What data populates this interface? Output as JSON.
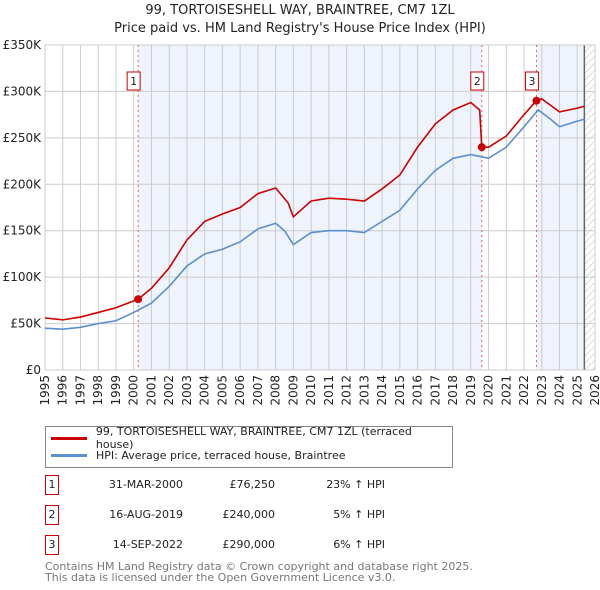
{
  "chart_data": {
    "type": "line",
    "title": "99, TORTOISESHELL WAY, BRAINTREE, CM7 1ZL",
    "subtitle": "Price paid vs. HM Land Registry's House Price Index (HPI)",
    "xlim": [
      1995,
      2026
    ],
    "ylim": [
      0,
      350000
    ],
    "y_ticks": [
      {
        "v": 0,
        "label": "£0"
      },
      {
        "v": 50000,
        "label": "£50K"
      },
      {
        "v": 100000,
        "label": "£100K"
      },
      {
        "v": 150000,
        "label": "£150K"
      },
      {
        "v": 200000,
        "label": "£200K"
      },
      {
        "v": 250000,
        "label": "£250K"
      },
      {
        "v": 300000,
        "label": "£300K"
      },
      {
        "v": 350000,
        "label": "£350K"
      }
    ],
    "x_ticks": [
      "1995",
      "1996",
      "1997",
      "1998",
      "1999",
      "2000",
      "2001",
      "2002",
      "2003",
      "2004",
      "2005",
      "2006",
      "2007",
      "2008",
      "2009",
      "2010",
      "2011",
      "2012",
      "2013",
      "2014",
      "2015",
      "2016",
      "2017",
      "2018",
      "2019",
      "2020",
      "2021",
      "2022",
      "2023",
      "2024",
      "2025",
      "2026"
    ],
    "grid": true,
    "shaded_ranges": [
      [
        2000.25,
        2019.62
      ],
      [
        2022.7,
        2025.4
      ]
    ],
    "hatch_from": 2025.4,
    "series": [
      {
        "name": "99, TORTOISESHELL WAY, BRAINTREE, CM7 1ZL (terraced house)",
        "color": "#cc0000",
        "x": [
          1995,
          1996,
          1997,
          1998,
          1999,
          2000.25,
          2001,
          2002,
          2003,
          2004,
          2005,
          2006,
          2007,
          2008,
          2008.7,
          2009,
          2010,
          2011,
          2012,
          2013,
          2014,
          2015,
          2016,
          2017,
          2018,
          2019,
          2019.5,
          2019.62,
          2020,
          2021,
          2022,
          2022.7,
          2023,
          2023.5,
          2024,
          2025,
          2025.4
        ],
        "y": [
          56000,
          54000,
          57000,
          62000,
          67000,
          76250,
          88000,
          110000,
          140000,
          160000,
          168000,
          175000,
          190000,
          196000,
          180000,
          165000,
          182000,
          185000,
          184000,
          182000,
          195000,
          210000,
          240000,
          265000,
          280000,
          288000,
          280000,
          240000,
          240000,
          252000,
          275000,
          290000,
          292000,
          285000,
          278000,
          282000,
          284000
        ]
      },
      {
        "name": "HPI: Average price, terraced house, Braintree",
        "color": "#5b8fd0",
        "x": [
          1995,
          1996,
          1997,
          1998,
          1999,
          2000,
          2001,
          2002,
          2003,
          2004,
          2005,
          2006,
          2007,
          2008,
          2008.5,
          2009,
          2010,
          2011,
          2012,
          2013,
          2014,
          2015,
          2016,
          2017,
          2018,
          2019,
          2020,
          2021,
          2022,
          2022.8,
          2023.5,
          2024,
          2025,
          2025.4
        ],
        "y": [
          45000,
          44000,
          46000,
          50000,
          53000,
          62000,
          72000,
          90000,
          112000,
          125000,
          130000,
          138000,
          152000,
          158000,
          150000,
          135000,
          148000,
          150000,
          150000,
          148000,
          160000,
          172000,
          195000,
          215000,
          228000,
          232000,
          228000,
          240000,
          262000,
          280000,
          270000,
          262000,
          268000,
          270000
        ]
      }
    ],
    "sales": [
      {
        "n": "1",
        "x": 2000.25,
        "y": 76250,
        "date": "31-MAR-2000",
        "price": "£76,250",
        "hpi": "23% ↑ HPI"
      },
      {
        "n": "2",
        "x": 2019.62,
        "y": 240000,
        "date": "16-AUG-2019",
        "price": "£240,000",
        "hpi": "5% ↑ HPI"
      },
      {
        "n": "3",
        "x": 2022.7,
        "y": 290000,
        "date": "14-SEP-2022",
        "price": "£290,000",
        "hpi": "6% ↑ HPI"
      }
    ],
    "footer": [
      "Contains HM Land Registry data © Crown copyright and database right 2025.",
      "This data is licensed under the Open Government Licence v3.0."
    ]
  }
}
